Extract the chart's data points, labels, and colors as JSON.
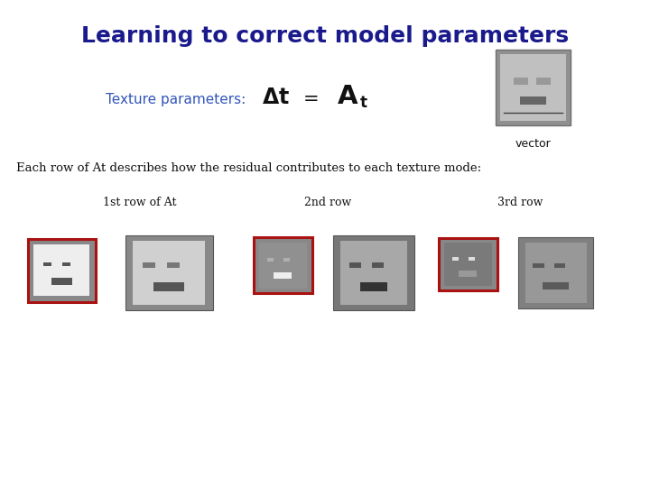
{
  "title": "Learning to correct model parameters",
  "title_color": "#1a1a8c",
  "title_fontsize": 18,
  "bg_color": "#ffffff",
  "texture_label": "Texture parameters:",
  "texture_label_color": "#3355bb",
  "vector_label": "vector",
  "description": "Each row of At describes how the residual contributes to each texture mode:",
  "row_labels": [
    "1st row of At",
    "2nd row",
    "3rd row"
  ],
  "gray_frame": "#888888",
  "gray_frame_dark": "#6a6a6a",
  "gray_inner1": "#d8d8d8",
  "gray_inner2": "#b0b0b0",
  "gray_inner3": "#999999",
  "gray_face1": "#cccccc",
  "gray_face2": "#aaaaaa",
  "gray_face3": "#999999",
  "red_border": "#aa1111",
  "white": "#ffffff",
  "black": "#111111",
  "img_positions": {
    "row1_small": [
      0.07,
      0.44,
      0.085,
      0.085
    ],
    "row1_large": [
      0.215,
      0.43,
      0.115,
      0.135
    ],
    "row2_small": [
      0.41,
      0.455,
      0.075,
      0.085
    ],
    "row2_large": [
      0.545,
      0.425,
      0.115,
      0.14
    ],
    "row3_small": [
      0.705,
      0.46,
      0.075,
      0.08
    ],
    "row3_large": [
      0.84,
      0.44,
      0.105,
      0.125
    ]
  }
}
